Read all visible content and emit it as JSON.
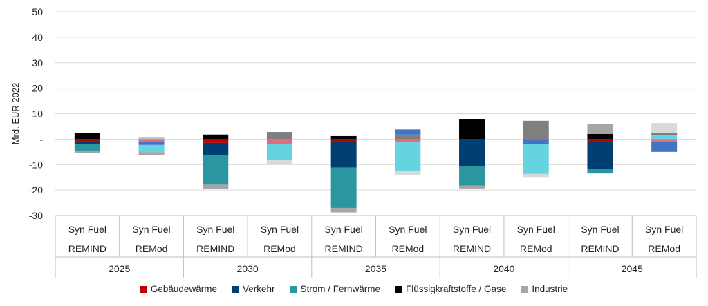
{
  "chart_data": {
    "type": "bar",
    "stacked": true,
    "ylabel": "Mrd. EUR 2022",
    "ylim": [
      -30,
      50
    ],
    "yticks": [
      -30,
      -20,
      -10,
      0,
      10,
      20,
      30,
      40,
      50
    ],
    "ytick_labels": [
      "-30",
      "-20",
      "-10",
      "-",
      "10",
      "20",
      "30",
      "40",
      "50"
    ],
    "grid": true,
    "legend_position": "bottom",
    "groups": [
      "2025",
      "2030",
      "2035",
      "2040",
      "2045"
    ],
    "categories": [
      {
        "fuel": "Syn Fuel",
        "model": "REMIND",
        "group": "2025"
      },
      {
        "fuel": "Syn Fuel",
        "model": "REMod",
        "group": "2025"
      },
      {
        "fuel": "Syn Fuel",
        "model": "REMIND",
        "group": "2030"
      },
      {
        "fuel": "Syn Fuel",
        "model": "REMod",
        "group": "2030"
      },
      {
        "fuel": "Syn Fuel",
        "model": "REMIND",
        "group": "2035"
      },
      {
        "fuel": "Syn Fuel",
        "model": "REMod",
        "group": "2035"
      },
      {
        "fuel": "Syn Fuel",
        "model": "REMIND",
        "group": "2040"
      },
      {
        "fuel": "Syn Fuel",
        "model": "REMod",
        "group": "2040"
      },
      {
        "fuel": "Syn Fuel",
        "model": "REMIND",
        "group": "2045"
      },
      {
        "fuel": "Syn Fuel",
        "model": "REMod",
        "group": "2045"
      }
    ],
    "legend": [
      {
        "name": "Gebäudewärme",
        "color": "#c00000"
      },
      {
        "name": "Verkehr",
        "color": "#003f72"
      },
      {
        "name": "Strom / Fernwärme",
        "color": "#2a969f"
      },
      {
        "name": "Flüssigkraftstoffe / Gase",
        "color": "#000000"
      },
      {
        "name": "Industrie",
        "color": "#a6a6a6"
      }
    ],
    "bars": [
      [
        {
          "value": 2.4,
          "color": "#000000"
        },
        {
          "value": -1.0,
          "color": "#c00000"
        },
        {
          "value": -0.8,
          "color": "#003f72"
        },
        {
          "value": -2.8,
          "color": "#2a969f"
        },
        {
          "value": -1.0,
          "color": "#a6a6a6"
        }
      ],
      [
        {
          "value": 0.6,
          "color": "#bfbfbf"
        },
        {
          "value": -1.0,
          "color": "#e06c7c"
        },
        {
          "value": -1.3,
          "color": "#4472c4"
        },
        {
          "value": -2.8,
          "color": "#66d4e0"
        },
        {
          "value": -1.1,
          "color": "#a6a6a6"
        }
      ],
      [
        {
          "value": 1.8,
          "color": "#000000"
        },
        {
          "value": -1.5,
          "color": "#c00000"
        },
        {
          "value": -4.8,
          "color": "#003f72"
        },
        {
          "value": -11.6,
          "color": "#2a969f"
        },
        {
          "value": -1.8,
          "color": "#a6a6a6"
        }
      ],
      [
        {
          "value": 2.8,
          "color": "#7f7f7f"
        },
        {
          "value": -1.8,
          "color": "#e06c7c"
        },
        {
          "value": -6.3,
          "color": "#66d4e0"
        },
        {
          "value": -1.6,
          "color": "#d9d9d9"
        }
      ],
      [
        {
          "value": 1.2,
          "color": "#000000"
        },
        {
          "value": -1.0,
          "color": "#c00000"
        },
        {
          "value": -10.2,
          "color": "#003f72"
        },
        {
          "value": -15.8,
          "color": "#2a969f"
        },
        {
          "value": -1.8,
          "color": "#a6a6a6"
        }
      ],
      [
        {
          "value": 1.8,
          "color": "#7f7f7f"
        },
        {
          "value": 2.0,
          "color": "#4472c4"
        },
        {
          "value": -1.3,
          "color": "#e06c7c"
        },
        {
          "value": -11.3,
          "color": "#66d4e0"
        },
        {
          "value": -1.6,
          "color": "#d9d9d9"
        }
      ],
      [
        {
          "value": 7.8,
          "color": "#000000"
        },
        {
          "value": -10.5,
          "color": "#003f72"
        },
        {
          "value": -7.7,
          "color": "#2a969f"
        },
        {
          "value": -1.2,
          "color": "#a6a6a6"
        }
      ],
      [
        {
          "value": 7.2,
          "color": "#7f7f7f"
        },
        {
          "value": -2.0,
          "color": "#4472c4"
        },
        {
          "value": -11.7,
          "color": "#66d4e0"
        },
        {
          "value": -1.2,
          "color": "#d9d9d9"
        }
      ],
      [
        {
          "value": 2.0,
          "color": "#000000"
        },
        {
          "value": 3.8,
          "color": "#a6a6a6"
        },
        {
          "value": -1.2,
          "color": "#c00000"
        },
        {
          "value": -10.5,
          "color": "#003f72"
        },
        {
          "value": -1.8,
          "color": "#2a969f"
        }
      ],
      [
        {
          "value": 1.5,
          "color": "#66d4e0"
        },
        {
          "value": 0.8,
          "color": "#7f7f7f"
        },
        {
          "value": 4.0,
          "color": "#d9d9d9"
        },
        {
          "value": -1.2,
          "color": "#e06c7c"
        },
        {
          "value": -3.8,
          "color": "#4472c4"
        }
      ]
    ]
  }
}
